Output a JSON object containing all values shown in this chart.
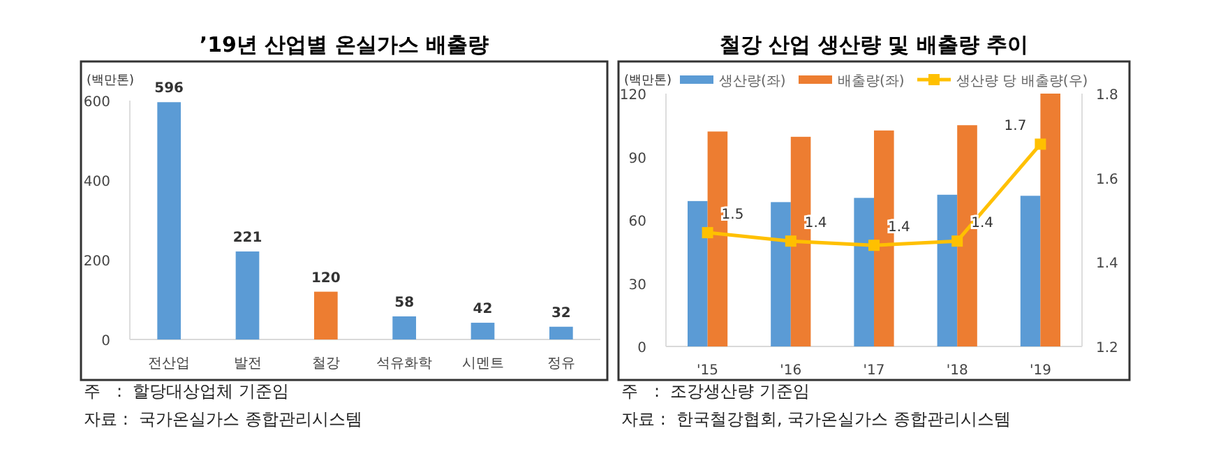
{
  "chart_data": [
    {
      "type": "bar",
      "title": "’19년 산업별 온실가스 배출량",
      "ylabel": "(백만톤)",
      "categories": [
        "전산업",
        "발전",
        "철강",
        "석유화학",
        "시멘트",
        "정유"
      ],
      "values": [
        596,
        221,
        120,
        58,
        42,
        32
      ],
      "colors": [
        "#5b9bd5",
        "#5b9bd5",
        "#ed7d31",
        "#5b9bd5",
        "#5b9bd5",
        "#5b9bd5"
      ],
      "ylim": [
        0,
        600
      ],
      "yticks": [
        0,
        200,
        400,
        600
      ],
      "data_labels": true,
      "grid": false,
      "annotations": [
        "주   :  할당대상업체 기준임",
        "자료 :  국가온실가스 종합관리시스템"
      ]
    },
    {
      "type": "bar",
      "title": "철강 산업 생산량 및 배출량 추이",
      "ylabel": "(백만톤)",
      "categories": [
        "'15",
        "'16",
        "'17",
        "'18",
        "'19"
      ],
      "series": [
        {
          "name": "생산량(좌)",
          "color": "#5b9bd5",
          "values": [
            69,
            68.5,
            70.5,
            72,
            71.5
          ]
        },
        {
          "name": "배출량(좌)",
          "color": "#ed7d31",
          "values": [
            102,
            99.5,
            102.5,
            105,
            120
          ]
        },
        {
          "name": "생산량 당 배출량(우)",
          "type": "line",
          "axis": "y2",
          "color": "#ffc000",
          "marker": "square",
          "values": [
            1.47,
            1.45,
            1.44,
            1.45,
            1.68
          ],
          "value_labels": [
            "1.5",
            "1.4",
            "1.4",
            "1.4",
            "1.7"
          ]
        }
      ],
      "ylim": [
        0,
        120
      ],
      "yticks": [
        0,
        30,
        60,
        90,
        120
      ],
      "y2lim": [
        1.2,
        1.8
      ],
      "y2ticks": [
        1.2,
        1.4,
        1.6,
        1.8
      ],
      "legend": "top",
      "grid": false,
      "annotations": [
        "주   :  조강생산량 기준임",
        "자료 :  한국철강협회, 국가온실가스 종합관리시스템"
      ]
    }
  ]
}
